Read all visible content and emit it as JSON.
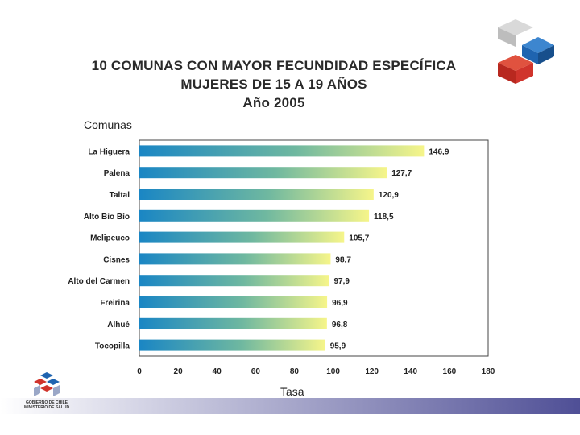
{
  "slide": {
    "title_lines": [
      "10 COMUNAS CON MAYOR FECUNDIDAD ESPECÍFICA",
      "MUJERES DE 15 A 19 AÑOS",
      "Año 2005"
    ],
    "brand_text_1": "GOBIERNO DE CHILE",
    "brand_text_2": "MINISTERIO DE SALUD",
    "colors": {
      "bar_start": "#1a86c4",
      "bar_mid": "#6fb8a0",
      "bar_end": "#f6f58a",
      "footer_start": "#ffffff",
      "footer_end": "#4f4f96",
      "logo_red": "#d0342c",
      "logo_blue": "#1f64b0",
      "logo_grey": "#c8c8c8"
    }
  },
  "chart_data": {
    "type": "bar",
    "orientation": "horizontal",
    "title": "10 COMUNAS CON MAYOR FECUNDIDAD ESPECÍFICA MUJERES DE 15 A 19 AÑOS Año 2005",
    "ylabel": "Comunas",
    "xlabel": "Tasa",
    "categories": [
      "La Higuera",
      "Palena",
      "Taltal",
      "Alto Bio Bío",
      "Melipeuco",
      "Cisnes",
      "Alto del Carmen",
      "Freirina",
      "Alhué",
      "Tocopilla"
    ],
    "values": [
      146.9,
      127.7,
      120.9,
      118.5,
      105.7,
      98.7,
      97.9,
      96.9,
      96.8,
      95.9
    ],
    "value_labels": [
      "146,9",
      "127,7",
      "120,9",
      "118,5",
      "105,7",
      "98,7",
      "97,9",
      "96,9",
      "96,8",
      "95,9"
    ],
    "xlim": [
      0,
      180
    ],
    "xticks": [
      "0",
      "20",
      "40",
      "60",
      "80",
      "100",
      "120",
      "140",
      "160",
      "180"
    ],
    "grid": false,
    "legend": "none"
  }
}
